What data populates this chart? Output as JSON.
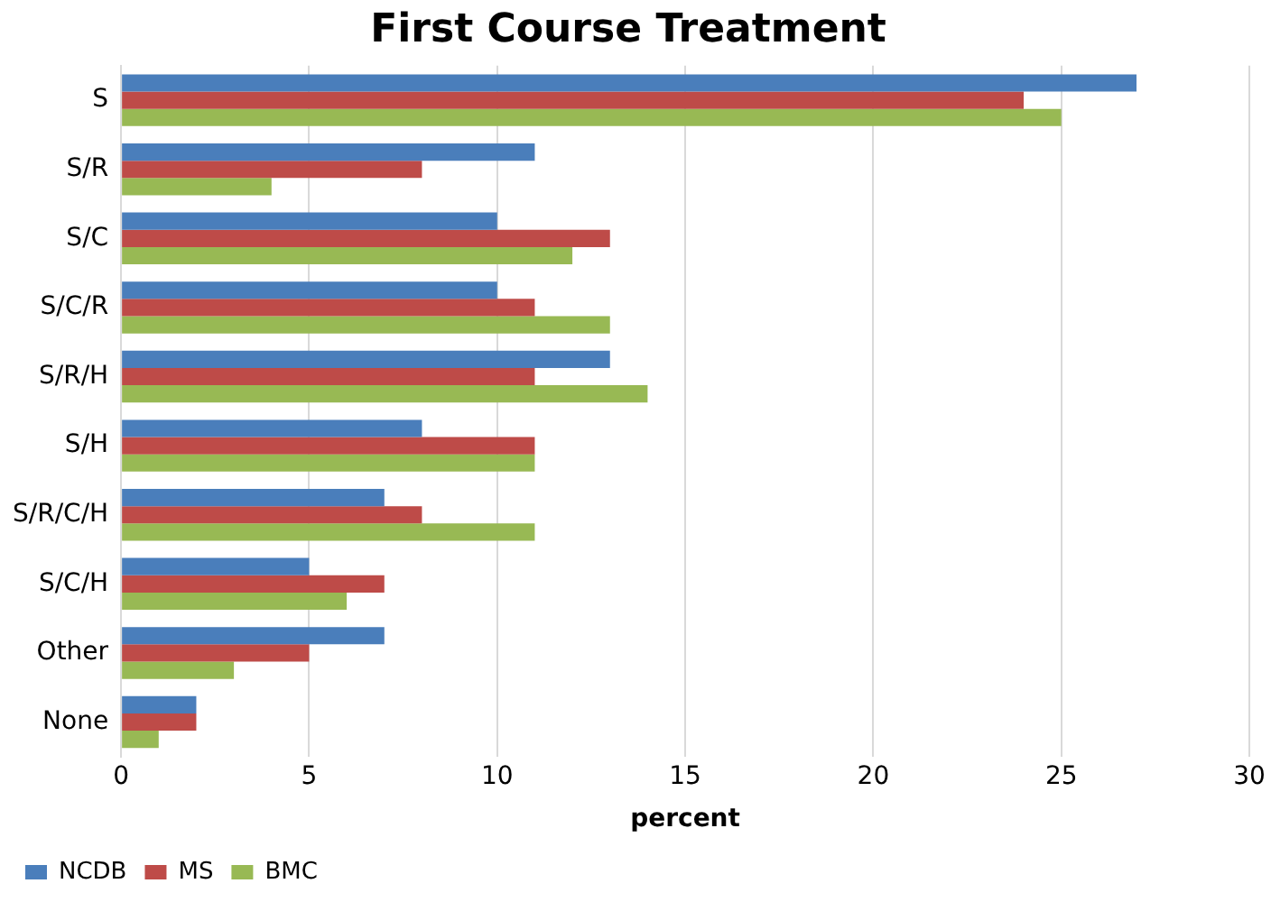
{
  "chart_data": {
    "type": "bar",
    "orientation": "horizontal",
    "title": "First Course Treatment",
    "xlabel": "percent",
    "categories": [
      "S",
      "S/R",
      "S/C",
      "S/C/R",
      "S/R/H",
      "S/H",
      "S/R/C/H",
      "S/C/H",
      "Other",
      "None"
    ],
    "series": [
      {
        "name": "NCDB",
        "color": "#4a7ebb",
        "values": [
          27,
          11,
          10,
          10,
          13,
          8,
          7,
          5,
          7,
          2
        ]
      },
      {
        "name": "MS",
        "color": "#be4b48",
        "values": [
          24,
          8,
          13,
          11,
          11,
          11,
          8,
          7,
          5,
          2
        ]
      },
      {
        "name": "BMC",
        "color": "#98b954",
        "values": [
          25,
          4,
          12,
          13,
          14,
          11,
          11,
          6,
          3,
          1
        ]
      }
    ],
    "xlim": [
      0,
      30
    ],
    "xticks": [
      0,
      5,
      10,
      15,
      20,
      25,
      30
    ],
    "grid": "x",
    "legend": "bottom left"
  }
}
